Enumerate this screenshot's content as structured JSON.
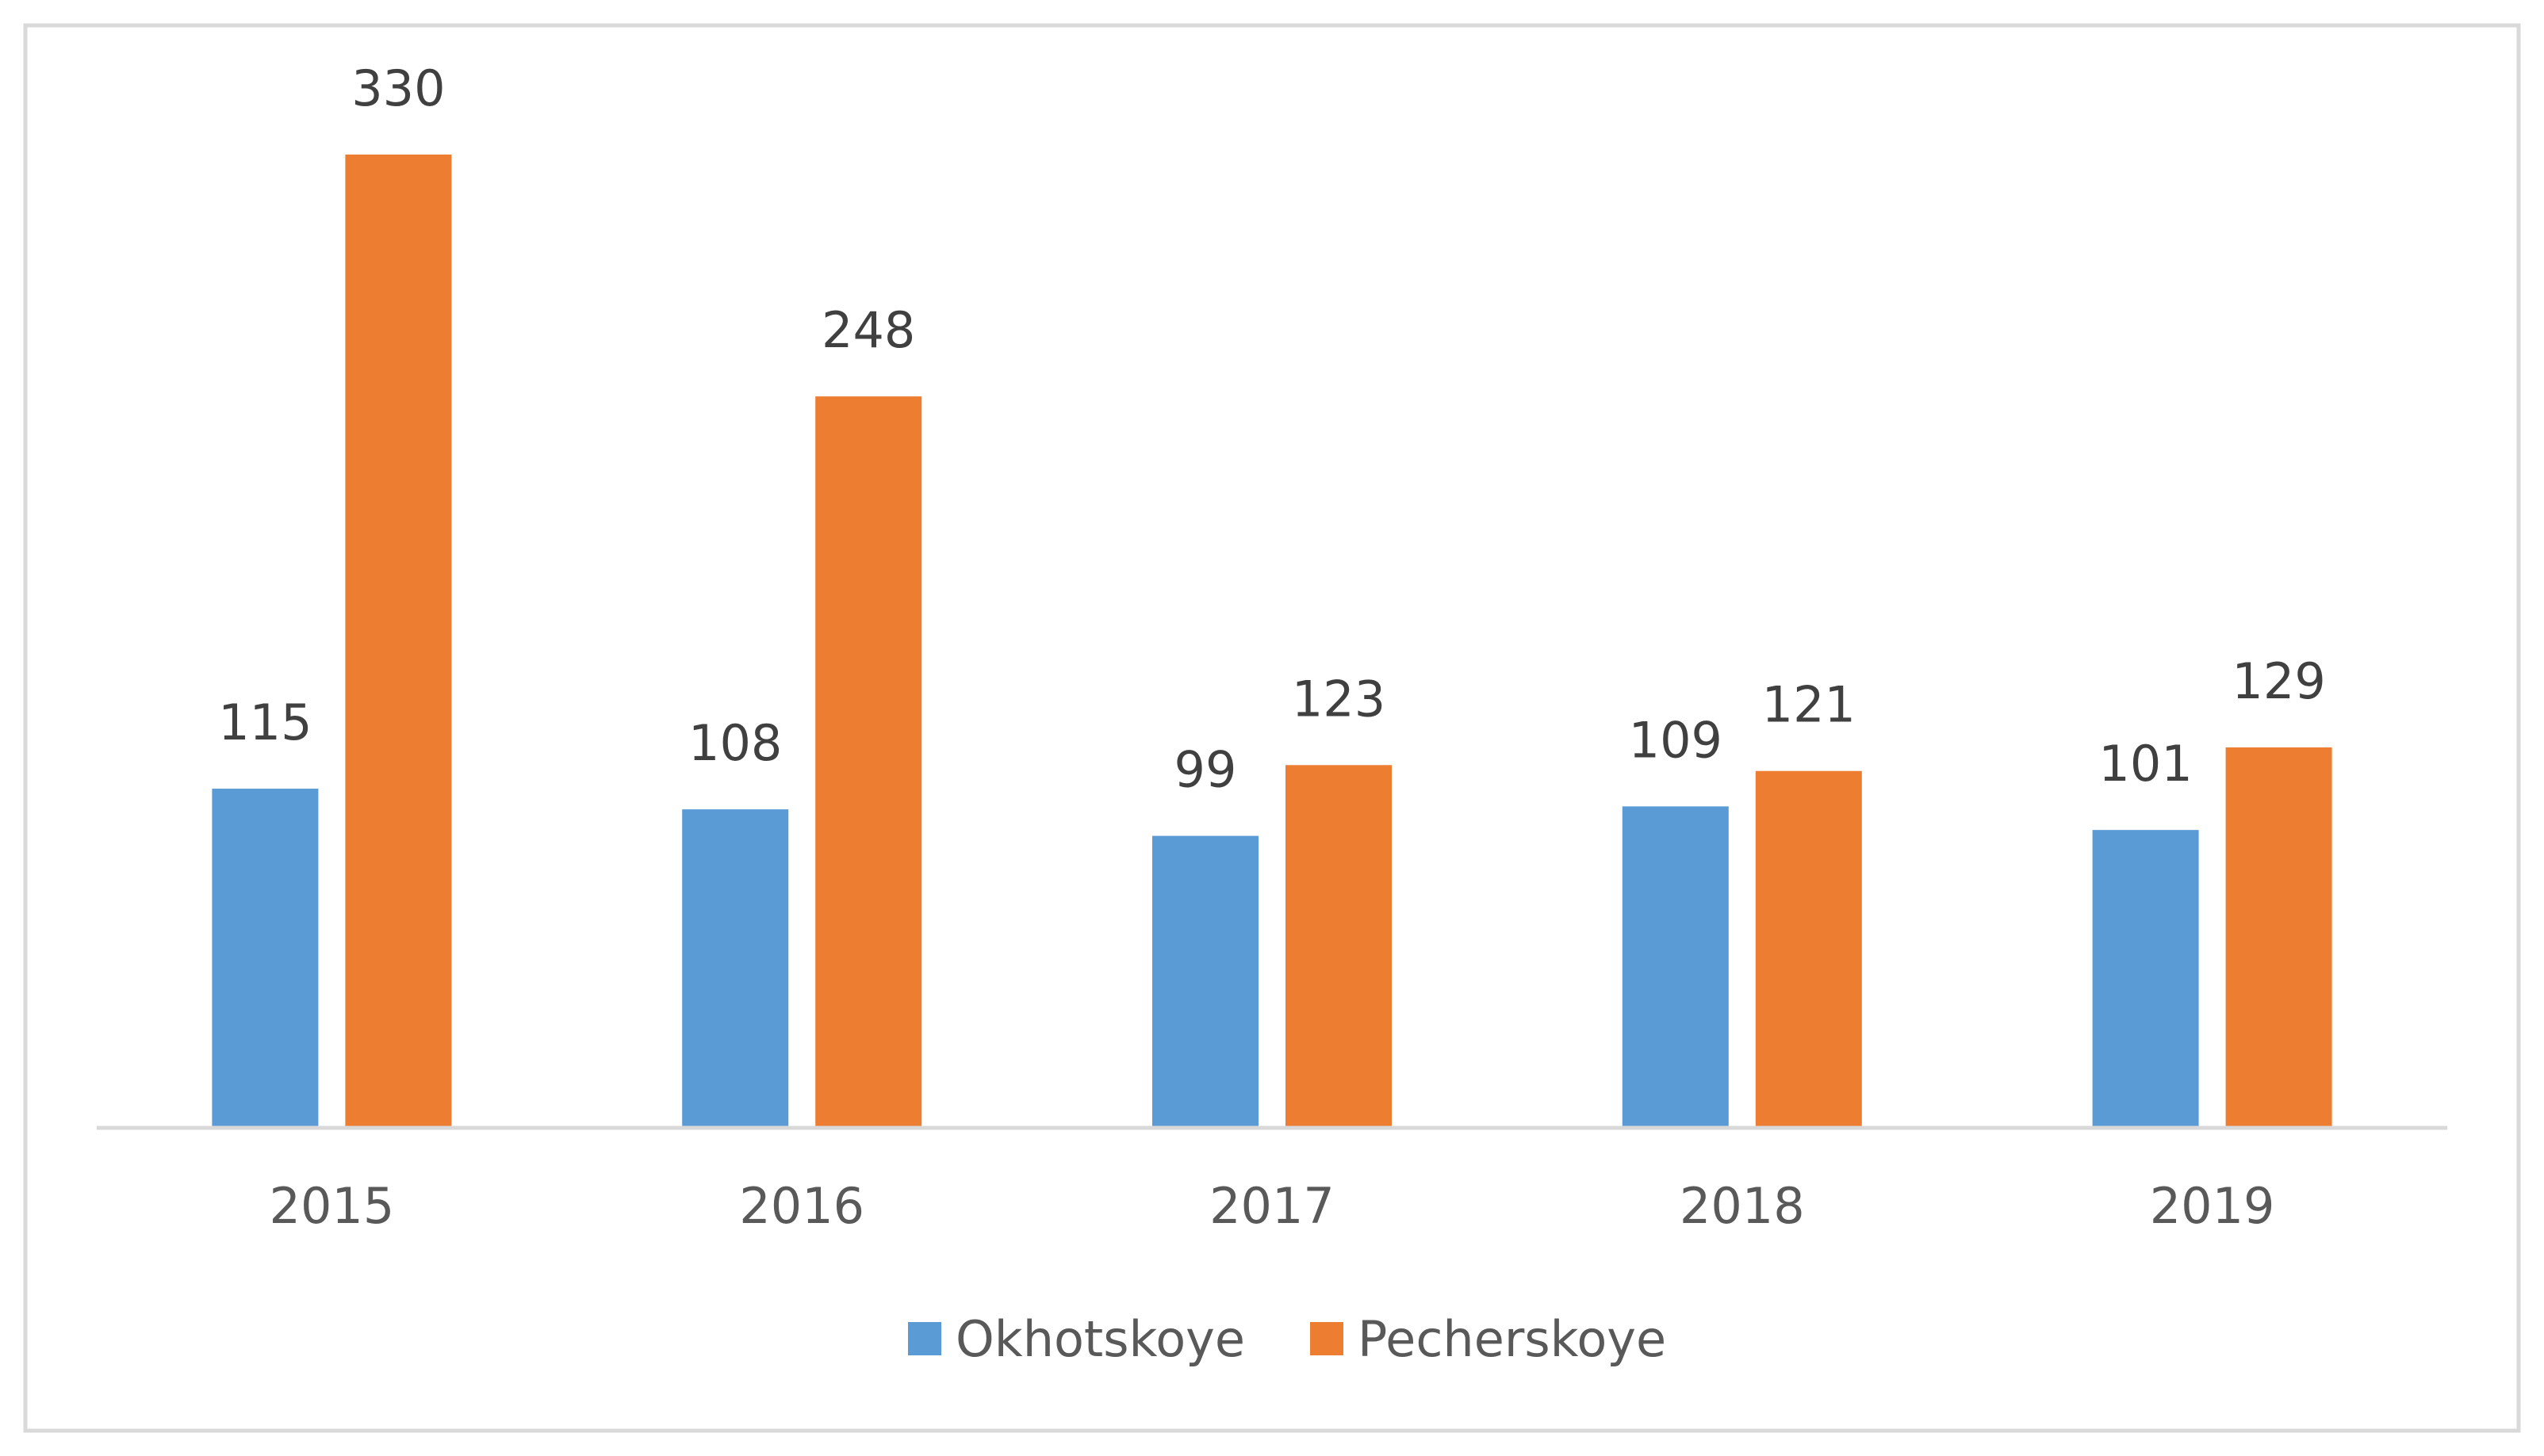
{
  "chart_data": {
    "type": "bar",
    "title": "",
    "xlabel": "",
    "ylabel": "",
    "categories": [
      "2015",
      "2016",
      "2017",
      "2018",
      "2019"
    ],
    "series": [
      {
        "name": "Okhotskoye",
        "values": [
          115,
          108,
          99,
          109,
          101
        ],
        "color": "#5b9bd5"
      },
      {
        "name": "Pecherskoye",
        "values": [
          330,
          248,
          123,
          121,
          129
        ],
        "color": "#ed7d31"
      }
    ],
    "ylim": [
      0,
      380
    ],
    "grid": false,
    "data_labels": true,
    "legend": "bottom-center",
    "axis_color": "#d9d9d9",
    "label_color": "#404040"
  }
}
